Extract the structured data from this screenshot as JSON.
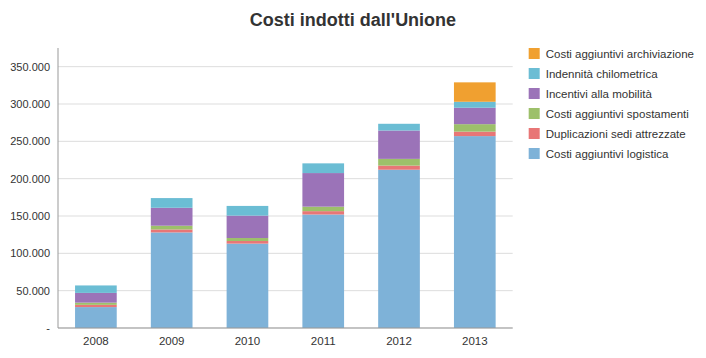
{
  "chart_data": {
    "type": "bar",
    "stacked": true,
    "title": "Costi indotti dall'Unione",
    "categories": [
      "2008",
      "2009",
      "2010",
      "2011",
      "2012",
      "2013"
    ],
    "series": [
      {
        "name": "Costi aggiuntivi logistica",
        "color": "#7EB2D8",
        "values": [
          28000,
          128000,
          113000,
          152000,
          212000,
          257000
        ]
      },
      {
        "name": "Duplicazioni sedi attrezzate",
        "color": "#E87676",
        "values": [
          3000,
          4000,
          3500,
          4500,
          5500,
          6000
        ]
      },
      {
        "name": "Costi aggiuntivi spostamenti",
        "color": "#9DC06A",
        "values": [
          3000,
          5000,
          4000,
          6000,
          9000,
          10000
        ]
      },
      {
        "name": "Incentivi alla mobilità",
        "color": "#9B73B8",
        "values": [
          13000,
          24000,
          30000,
          45000,
          38000,
          22000
        ]
      },
      {
        "name": "Indennità chilometrica",
        "color": "#6BBDD4",
        "values": [
          10000,
          13000,
          13000,
          13000,
          9000,
          8000
        ]
      },
      {
        "name": "Costi aggiuntivi archiviazione",
        "color": "#F0A030",
        "values": [
          0,
          0,
          0,
          0,
          0,
          26000
        ]
      }
    ],
    "ylim": [
      0,
      375000
    ],
    "yticks": [
      {
        "value": 0,
        "label": "-"
      },
      {
        "value": 50000,
        "label": "50.000"
      },
      {
        "value": 100000,
        "label": "100.000"
      },
      {
        "value": 150000,
        "label": "150.000"
      },
      {
        "value": 200000,
        "label": "200.000"
      },
      {
        "value": 250000,
        "label": "250.000"
      },
      {
        "value": 300000,
        "label": "300.000"
      },
      {
        "value": 350000,
        "label": "350.000"
      }
    ],
    "grid": true,
    "legend": "right"
  }
}
